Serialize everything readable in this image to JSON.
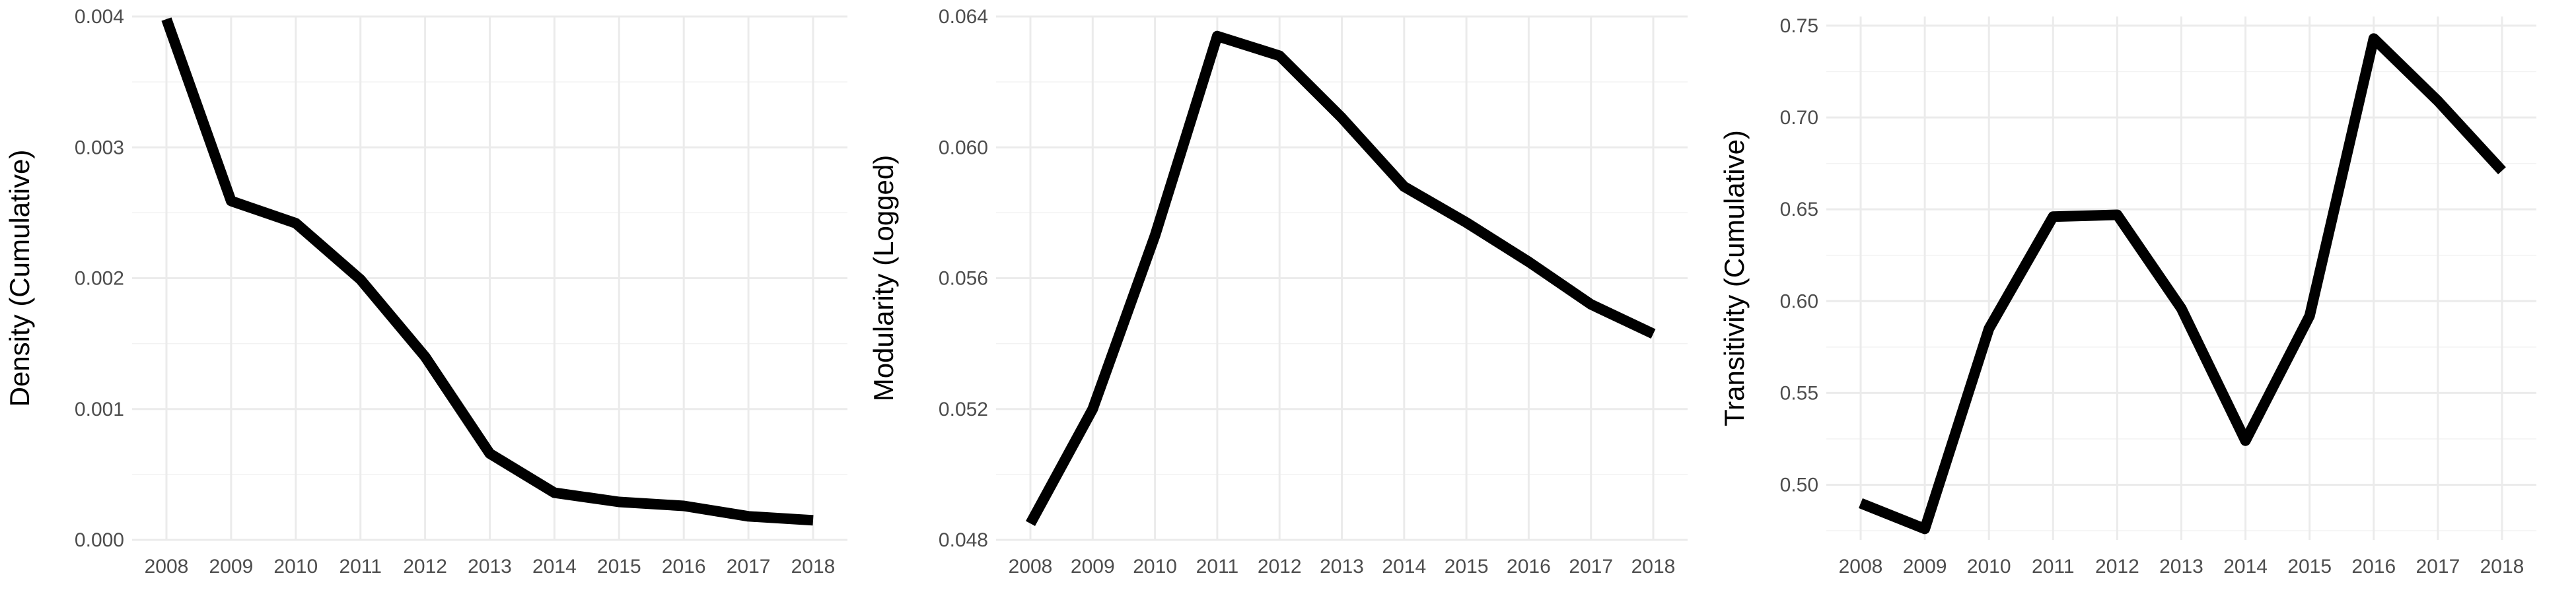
{
  "chart_data": [
    {
      "type": "line",
      "title": "",
      "xlabel": "",
      "ylabel": "Density (Cumulative)",
      "x": [
        2008,
        2009,
        2010,
        2011,
        2012,
        2013,
        2014,
        2015,
        2016,
        2017,
        2018
      ],
      "x_tick_labels": [
        "2008",
        "2009",
        "2010",
        "2011",
        "2012",
        "2013",
        "2014",
        "2015",
        "2016",
        "2017",
        "2018"
      ],
      "series": [
        {
          "values": [
            0.00398,
            0.00259,
            0.00242,
            0.00199,
            0.0014,
            0.00066,
            0.00036,
            0.00029,
            0.00026,
            0.00018,
            0.00015
          ]
        }
      ],
      "yticks": [
        0.0,
        0.001,
        0.002,
        0.003,
        0.004
      ],
      "y_tick_labels": [
        "0.000",
        "0.001",
        "0.002",
        "0.003",
        "0.004"
      ],
      "ylim": [
        0,
        0.004
      ],
      "grid": true,
      "line_color": "#000000"
    },
    {
      "type": "line",
      "title": "",
      "xlabel": "",
      "ylabel": "Modularity (Logged)",
      "x": [
        2008,
        2009,
        2010,
        2011,
        2012,
        2013,
        2014,
        2015,
        2016,
        2017,
        2018
      ],
      "x_tick_labels": [
        "2008",
        "2009",
        "2010",
        "2011",
        "2012",
        "2013",
        "2014",
        "2015",
        "2016",
        "2017",
        "2018"
      ],
      "series": [
        {
          "values": [
            0.0485,
            0.052,
            0.0573,
            0.0634,
            0.0628,
            0.0609,
            0.0588,
            0.0577,
            0.0565,
            0.0552,
            0.0543
          ]
        }
      ],
      "yticks": [
        0.048,
        0.052,
        0.056,
        0.06,
        0.064
      ],
      "y_tick_labels": [
        "0.048",
        "0.052",
        "0.056",
        "0.060",
        "0.064"
      ],
      "ylim": [
        0.048,
        0.064
      ],
      "grid": true,
      "line_color": "#000000"
    },
    {
      "type": "line",
      "title": "",
      "xlabel": "",
      "ylabel": "Transitivity (Cumulative)",
      "x": [
        2008,
        2009,
        2010,
        2011,
        2012,
        2013,
        2014,
        2015,
        2016,
        2017,
        2018
      ],
      "x_tick_labels": [
        "2008",
        "2009",
        "2010",
        "2011",
        "2012",
        "2013",
        "2014",
        "2015",
        "2016",
        "2017",
        "2018"
      ],
      "series": [
        {
          "values": [
            0.49,
            0.476,
            0.585,
            0.646,
            0.647,
            0.596,
            0.524,
            0.592,
            0.743,
            0.709,
            0.671
          ]
        }
      ],
      "yticks": [
        0.5,
        0.55,
        0.6,
        0.65,
        0.7,
        0.75
      ],
      "y_tick_labels": [
        "0.50",
        "0.55",
        "0.60",
        "0.65",
        "0.70",
        "0.75"
      ],
      "ylim": [
        0.47,
        0.755
      ],
      "grid": true,
      "line_color": "#000000"
    }
  ]
}
